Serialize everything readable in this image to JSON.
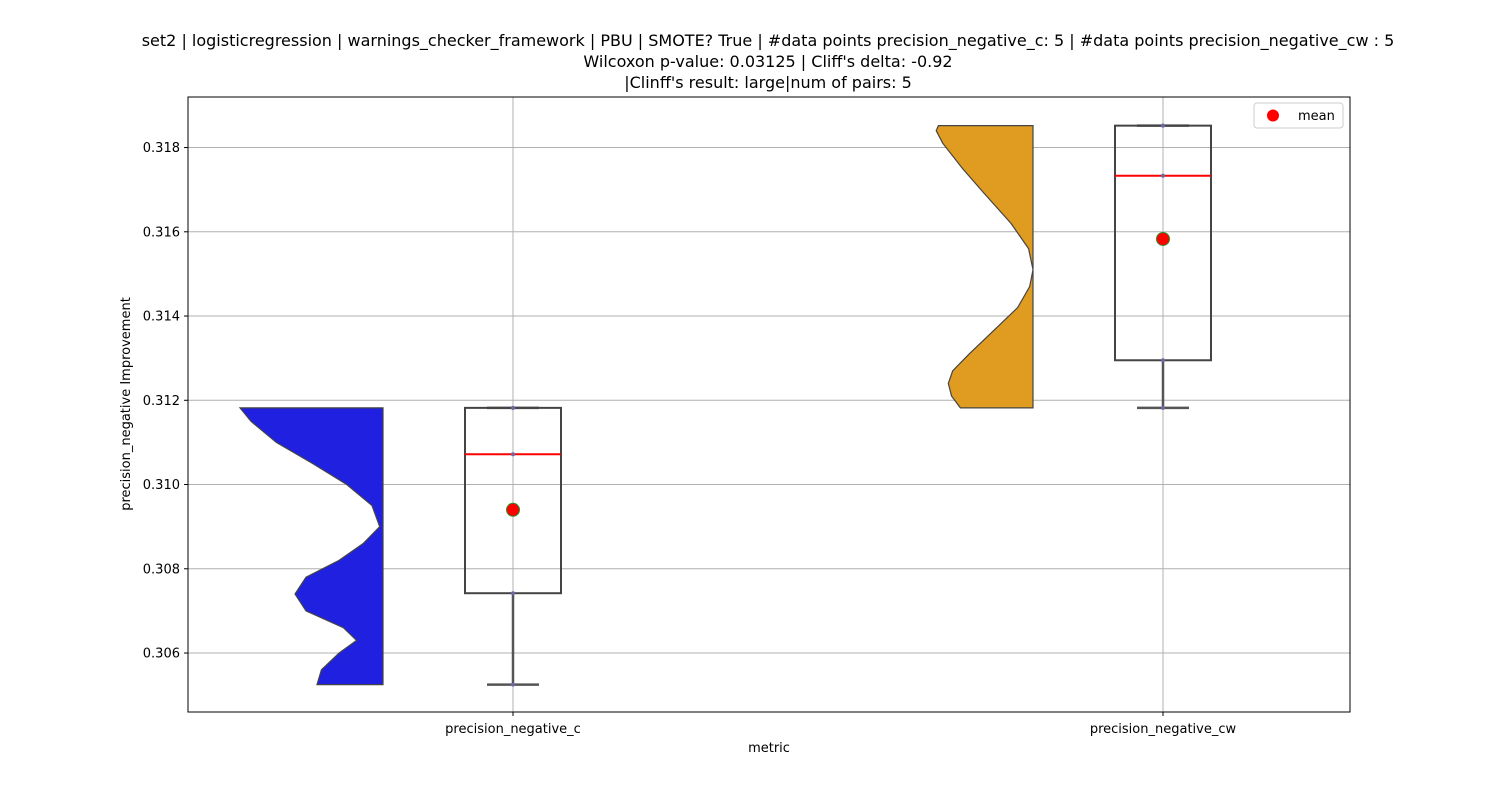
{
  "chart_data": {
    "type": "violin+box",
    "title": [
      "set2 | logisticregression | warnings_checker_framework | PBU | SMOTE? True | #data points precision_negative_c: 5 | #data points precision_negative_cw : 5",
      "Wilcoxon p-value: 0.03125 | Cliff's delta: -0.92",
      "|Clinff's result: large|num of pairs: 5"
    ],
    "xlabel": "metric",
    "ylabel": "precision_negative Improvement",
    "ylim": [
      0.3046,
      0.3192
    ],
    "yticks": [
      0.306,
      0.308,
      0.31,
      0.312,
      0.314,
      0.316,
      0.318
    ],
    "grid": true,
    "legend": {
      "position": "top-right",
      "entries": [
        {
          "label": "mean",
          "color": "#ff0000"
        }
      ]
    },
    "categories": [
      "precision_negative_c",
      "precision_negative_cw"
    ],
    "series": [
      {
        "name": "precision_negative_c",
        "violin_color": "#2020e0",
        "points": [
          0.30525,
          0.30742,
          0.31072,
          0.31182,
          0.31182
        ],
        "box": {
          "min": 0.30525,
          "q1": 0.30742,
          "median": 0.31072,
          "q3": 0.31182,
          "max": 0.31182
        },
        "mean": 0.3094,
        "density": [
          [
            0.30525,
            0.6
          ],
          [
            0.3056,
            0.56
          ],
          [
            0.306,
            0.4
          ],
          [
            0.3063,
            0.24
          ],
          [
            0.3066,
            0.36
          ],
          [
            0.307,
            0.7
          ],
          [
            0.3074,
            0.8
          ],
          [
            0.3078,
            0.7
          ],
          [
            0.3082,
            0.4
          ],
          [
            0.3086,
            0.18
          ],
          [
            0.309,
            0.03
          ],
          [
            0.3095,
            0.1
          ],
          [
            0.31,
            0.33
          ],
          [
            0.3105,
            0.64
          ],
          [
            0.311,
            0.97
          ],
          [
            0.3115,
            1.2
          ],
          [
            0.31182,
            1.3
          ]
        ]
      },
      {
        "name": "precision_negative_cw",
        "violin_color": "#e09c20",
        "points": [
          0.31182,
          0.31295,
          0.31733,
          0.31852,
          0.31852
        ],
        "box": {
          "min": 0.31182,
          "q1": 0.31295,
          "median": 0.31733,
          "q3": 0.31852,
          "max": 0.31852
        },
        "mean": 0.31583,
        "density": [
          [
            0.31182,
            0.66
          ],
          [
            0.3121,
            0.74
          ],
          [
            0.3124,
            0.77
          ],
          [
            0.3127,
            0.73
          ],
          [
            0.3131,
            0.58
          ],
          [
            0.3136,
            0.38
          ],
          [
            0.3142,
            0.14
          ],
          [
            0.3147,
            0.03
          ],
          [
            0.3151,
            0.0
          ],
          [
            0.3156,
            0.04
          ],
          [
            0.3162,
            0.2
          ],
          [
            0.3169,
            0.44
          ],
          [
            0.3175,
            0.64
          ],
          [
            0.3181,
            0.82
          ],
          [
            0.3184,
            0.88
          ],
          [
            0.31852,
            0.86
          ]
        ]
      }
    ]
  }
}
